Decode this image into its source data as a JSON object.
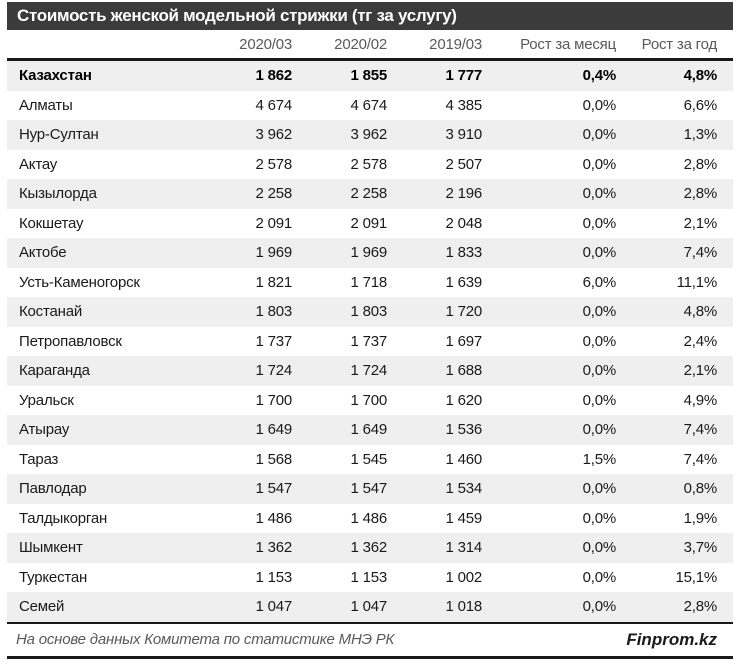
{
  "title": "Стоимость женской модельной стрижки (тг за услугу)",
  "chart_data": {
    "type": "table",
    "title": "Стоимость женской модельной стрижки (тг за услугу)",
    "columns": [
      "",
      "2020/03",
      "2020/02",
      "2019/03",
      "Рост за месяц",
      "Рост за год"
    ],
    "rows": [
      {
        "region": "Казахстан",
        "values": [
          "1 862",
          "1 855",
          "1 777",
          "0,4%",
          "4,8%"
        ],
        "bold": true
      },
      {
        "region": "Алматы",
        "values": [
          "4 674",
          "4 674",
          "4 385",
          "0,0%",
          "6,6%"
        ],
        "bold": false
      },
      {
        "region": "Нур-Султан",
        "values": [
          "3 962",
          "3 962",
          "3 910",
          "0,0%",
          "1,3%"
        ],
        "bold": false
      },
      {
        "region": "Актау",
        "values": [
          "2 578",
          "2 578",
          "2 507",
          "0,0%",
          "2,8%"
        ],
        "bold": false
      },
      {
        "region": "Кызылорда",
        "values": [
          "2 258",
          "2 258",
          "2 196",
          "0,0%",
          "2,8%"
        ],
        "bold": false
      },
      {
        "region": "Кокшетау",
        "values": [
          "2 091",
          "2 091",
          "2 048",
          "0,0%",
          "2,1%"
        ],
        "bold": false
      },
      {
        "region": "Актобе",
        "values": [
          "1 969",
          "1 969",
          "1 833",
          "0,0%",
          "7,4%"
        ],
        "bold": false
      },
      {
        "region": "Усть-Каменогорск",
        "values": [
          "1 821",
          "1 718",
          "1 639",
          "6,0%",
          "11,1%"
        ],
        "bold": false
      },
      {
        "region": "Костанай",
        "values": [
          "1 803",
          "1 803",
          "1 720",
          "0,0%",
          "4,8%"
        ],
        "bold": false
      },
      {
        "region": "Петропавловск",
        "values": [
          "1 737",
          "1 737",
          "1 697",
          "0,0%",
          "2,4%"
        ],
        "bold": false
      },
      {
        "region": "Караганда",
        "values": [
          "1 724",
          "1 724",
          "1 688",
          "0,0%",
          "2,1%"
        ],
        "bold": false
      },
      {
        "region": "Уральск",
        "values": [
          "1 700",
          "1 700",
          "1 620",
          "0,0%",
          "4,9%"
        ],
        "bold": false
      },
      {
        "region": "Атырау",
        "values": [
          "1 649",
          "1 649",
          "1 536",
          "0,0%",
          "7,4%"
        ],
        "bold": false
      },
      {
        "region": "Тараз",
        "values": [
          "1 568",
          "1 545",
          "1 460",
          "1,5%",
          "7,4%"
        ],
        "bold": false
      },
      {
        "region": "Павлодар",
        "values": [
          "1 547",
          "1 547",
          "1 534",
          "0,0%",
          "0,8%"
        ],
        "bold": false
      },
      {
        "region": "Талдыкорган",
        "values": [
          "1 486",
          "1 486",
          "1 459",
          "0,0%",
          "1,9%"
        ],
        "bold": false
      },
      {
        "region": "Шымкент",
        "values": [
          "1 362",
          "1 362",
          "1 314",
          "0,0%",
          "3,7%"
        ],
        "bold": false
      },
      {
        "region": "Туркестан",
        "values": [
          "1 153",
          "1 153",
          "1 002",
          "0,0%",
          "15,1%"
        ],
        "bold": false
      },
      {
        "region": "Семей",
        "values": [
          "1 047",
          "1 047",
          "1 018",
          "0,0%",
          "2,8%"
        ],
        "bold": false
      }
    ]
  },
  "footer": {
    "source": "На основе данных Комитета по статистике МНЭ РК",
    "brand": "Finprom.kz"
  },
  "colors": {
    "title_bar_bg": "#3b3b3b",
    "title_text": "#ffffff",
    "stripe_row_bg": "#efefef",
    "header_text": "#595959",
    "body_text": "#1a1a1a",
    "rule": "#1a1a1a"
  }
}
